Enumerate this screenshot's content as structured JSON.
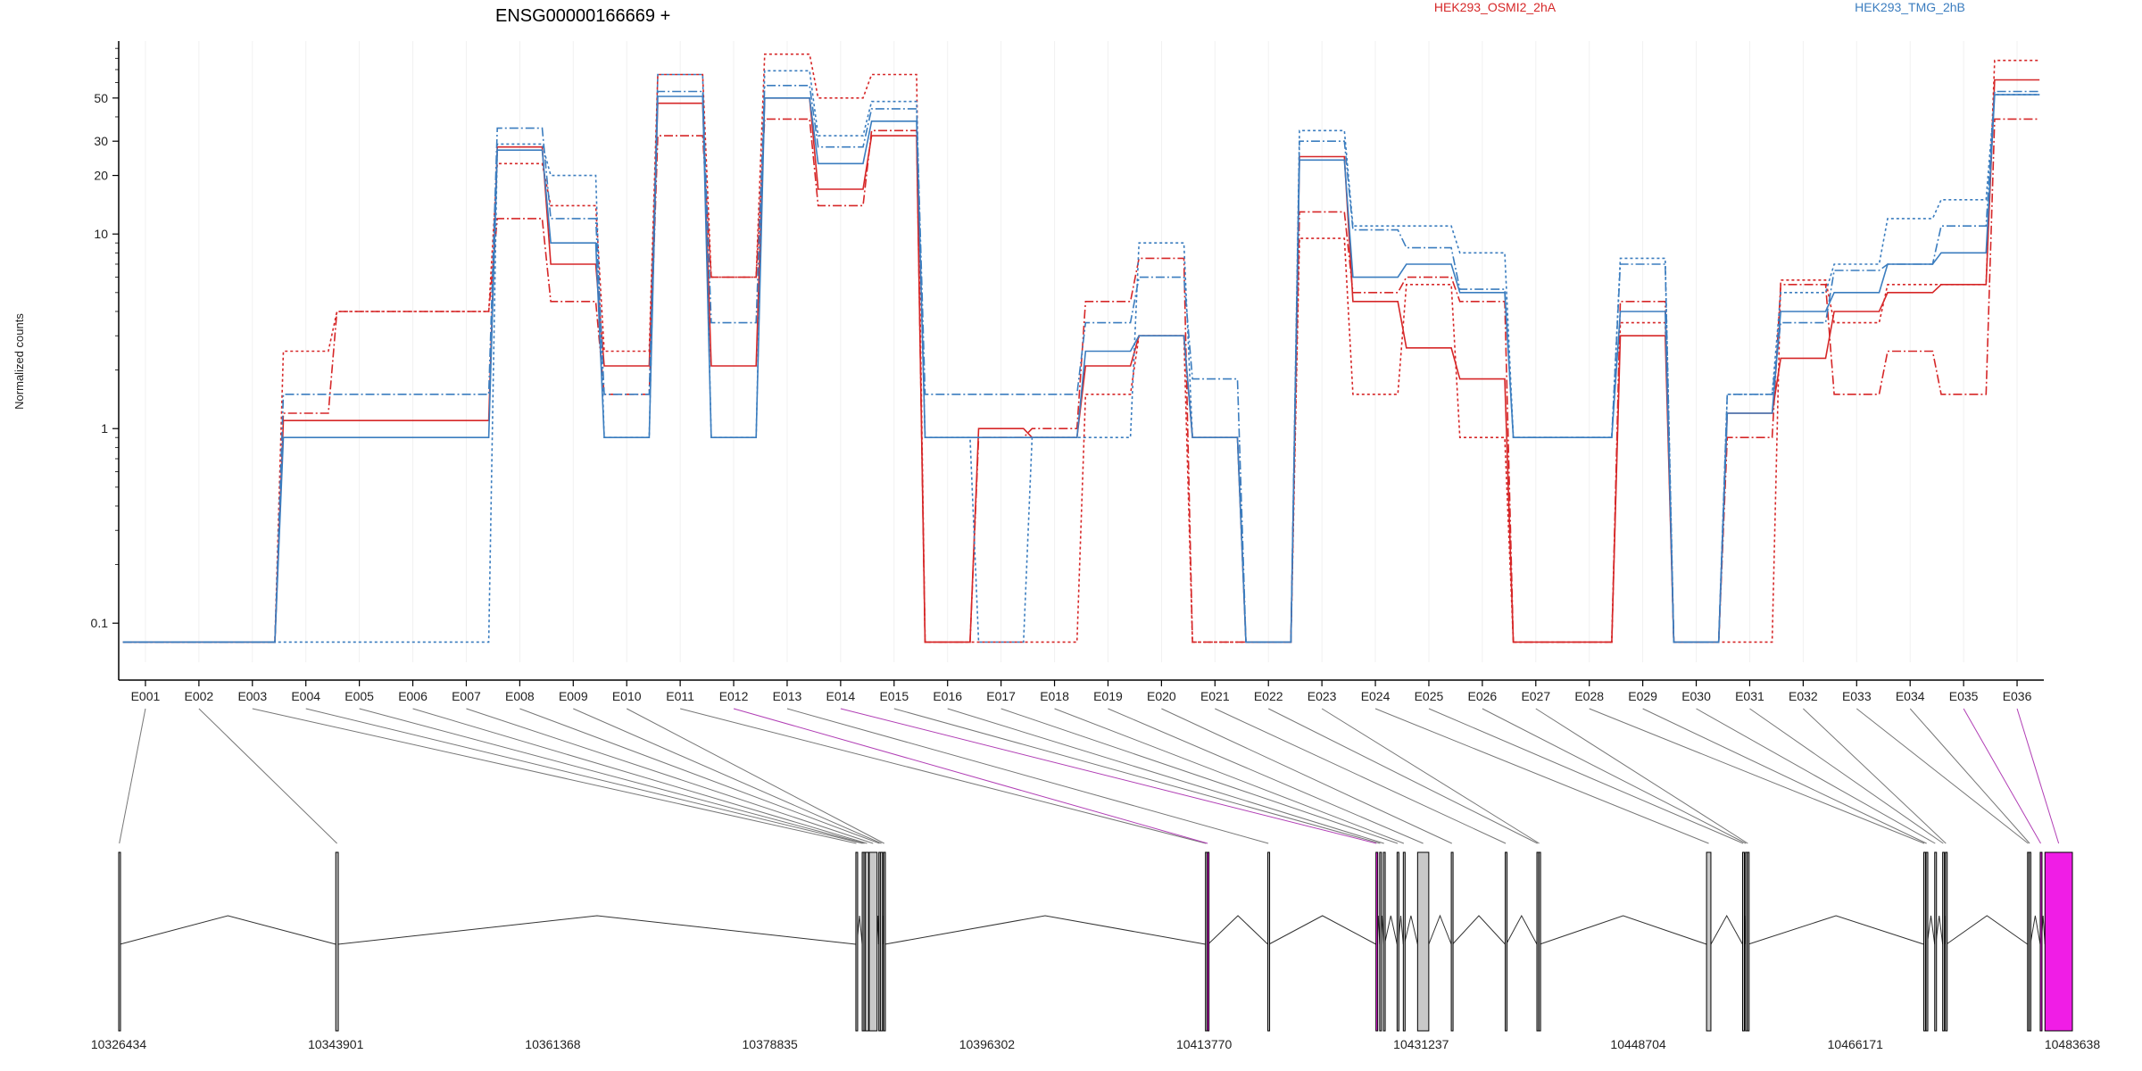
{
  "chart_data": {
    "type": "line",
    "title": "ENSG00000166669 +",
    "ylabel": "Normalized counts",
    "xlabel": "",
    "yscale": "log",
    "ylim": [
      0.07,
      100
    ],
    "yticks": [
      0.1,
      1,
      10,
      20,
      30,
      50
    ],
    "ytick_labels": [
      "0.1",
      "1",
      "10",
      "20",
      "30",
      "50"
    ],
    "legend": {
      "placement": "top",
      "entries": [
        "HEK293_OSMI2_2hA",
        "HEK293_TMG_2hB"
      ]
    },
    "colors": {
      "HEK293_OSMI2_2hA": "#d62728",
      "HEK293_TMG_2hB": "#3b7dbf",
      "highlight": "#f01de6",
      "exon": "#c8c8c8"
    },
    "categories": [
      "E001",
      "E002",
      "E003",
      "E004",
      "E005",
      "E006",
      "E007",
      "E008",
      "E009",
      "E010",
      "E011",
      "E012",
      "E013",
      "E014",
      "E015",
      "E016",
      "E017",
      "E018",
      "E019",
      "E020",
      "E021",
      "E022",
      "E023",
      "E024",
      "E025",
      "E026",
      "E027",
      "E028",
      "E029",
      "E030",
      "E031",
      "E032",
      "E033",
      "E034",
      "E035",
      "E036"
    ],
    "series": [
      {
        "name": "HEK293_OSMI2_2hA",
        "style": "solid",
        "values": [
          0.08,
          0.08,
          0.08,
          1.1,
          1.1,
          1.1,
          1.1,
          28,
          7,
          2.1,
          47,
          2.1,
          50,
          17,
          32,
          0.08,
          1,
          0.9,
          2.1,
          3,
          0.9,
          0.08,
          25,
          4.5,
          2.6,
          1.8,
          0.08,
          0.08,
          3,
          0.08,
          1.2,
          2.3,
          4,
          5,
          5.5,
          62
        ]
      },
      {
        "name": "HEK293_OSMI2_2hA",
        "style": "dashed",
        "values": [
          0.08,
          0.08,
          0.08,
          1.2,
          4,
          4,
          4,
          12,
          4.5,
          1.5,
          32,
          6,
          39,
          14,
          34,
          0.08,
          0.9,
          1,
          4.5,
          7.5,
          0.08,
          0.08,
          13,
          5,
          6,
          4.5,
          0.08,
          0.08,
          4.5,
          0.08,
          0.9,
          5.5,
          1.5,
          2.5,
          1.5,
          39
        ]
      },
      {
        "name": "HEK293_OSMI2_2hA",
        "style": "dotted",
        "values": [
          0.08,
          0.08,
          0.08,
          2.5,
          4,
          4,
          4,
          23,
          14,
          2.5,
          66,
          6,
          84,
          50,
          66,
          0.08,
          0.08,
          0.08,
          1.5,
          3,
          0.08,
          0.08,
          9.5,
          1.5,
          5.5,
          0.9,
          0.08,
          0.08,
          3.5,
          0.08,
          0.08,
          5.8,
          3.5,
          5.5,
          5.5,
          78
        ]
      },
      {
        "name": "HEK293_TMG_2hB",
        "style": "solid",
        "values": [
          0.08,
          0.08,
          0.08,
          0.9,
          0.9,
          0.9,
          0.9,
          27,
          9,
          0.9,
          51,
          0.9,
          50,
          23,
          38,
          0.9,
          0.9,
          0.9,
          2.5,
          3,
          0.9,
          0.08,
          24,
          6,
          7,
          5,
          0.9,
          0.9,
          4,
          0.08,
          1.2,
          4,
          5,
          7,
          8,
          52
        ]
      },
      {
        "name": "HEK293_TMG_2hB",
        "style": "dashed",
        "values": [
          0.08,
          0.08,
          0.08,
          1.5,
          1.5,
          1.5,
          1.5,
          35,
          12,
          1.5,
          54,
          3.5,
          58,
          28,
          44,
          1.5,
          1.5,
          1.5,
          3.5,
          6,
          1.8,
          0.08,
          30,
          10.5,
          8.5,
          5.2,
          0.9,
          0.9,
          7,
          0.08,
          1.5,
          3.5,
          6.5,
          7,
          11,
          54
        ]
      },
      {
        "name": "HEK293_TMG_2hB",
        "style": "dotted",
        "values": [
          0.08,
          0.08,
          0.08,
          0.08,
          0.08,
          0.08,
          0.08,
          29,
          20,
          0.9,
          66,
          0.9,
          69,
          32,
          48,
          0.9,
          0.08,
          0.9,
          0.9,
          9,
          0.9,
          0.08,
          34,
          11,
          11,
          8,
          0.9,
          0.9,
          7.5,
          0.08,
          1.5,
          5,
          7,
          12,
          15,
          52
        ]
      }
    ],
    "gene_track": {
      "coordinate_labels": [
        "10326434",
        "10343901",
        "10361368",
        "10378835",
        "10396302",
        "10413770",
        "10431237",
        "10448704",
        "10466171",
        "10483638"
      ],
      "coordinate_range": [
        10326434,
        10483638
      ],
      "exons": [
        [
          10326434,
          10326534
        ],
        [
          10343901,
          10344101
        ],
        [
          10385750,
          10385830
        ],
        [
          10386260,
          10386340
        ],
        [
          10386400,
          10386480
        ],
        [
          10386520,
          10386780
        ],
        [
          10386820,
          10387460
        ],
        [
          10387600,
          10387700
        ],
        [
          10387720,
          10387900
        ],
        [
          10387980,
          10388080
        ],
        [
          10413880,
          10413960
        ],
        [
          10414020,
          10414090
        ],
        [
          10418900,
          10418990
        ],
        [
          10427600,
          10427680
        ],
        [
          10427900,
          10427980
        ],
        [
          10428200,
          10428290
        ],
        [
          10429300,
          10429390
        ],
        [
          10429800,
          10429880
        ],
        [
          10430950,
          10431850
        ],
        [
          10433660,
          10433760
        ],
        [
          10438000,
          10438080
        ],
        [
          10440550,
          10440650
        ],
        [
          10440700,
          10440780
        ],
        [
          10454200,
          10454550
        ],
        [
          10457100,
          10457200
        ],
        [
          10457330,
          10457410
        ],
        [
          10457480,
          10457560
        ],
        [
          10471680,
          10471760
        ],
        [
          10471860,
          10471950
        ],
        [
          10472560,
          10472640
        ],
        [
          10473200,
          10473300
        ],
        [
          10473420,
          10473500
        ],
        [
          10480030,
          10480130
        ],
        [
          10480150,
          10480250
        ],
        [
          10481050,
          10481130
        ],
        [
          10481430,
          10483638
        ]
      ],
      "highlight_exons": [
        12,
        14,
        35,
        36
      ]
    }
  }
}
